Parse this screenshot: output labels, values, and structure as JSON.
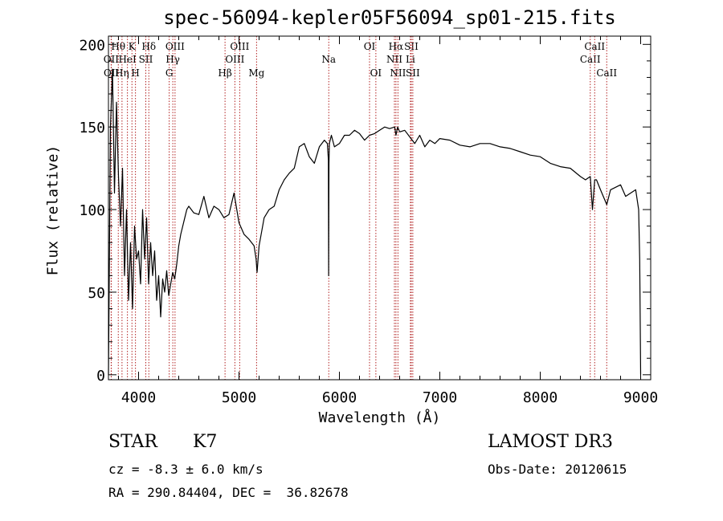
{
  "chart_data": {
    "type": "line",
    "title": "spec-56094-kepler05F56094_sp01-215.fits",
    "xlabel": "Wavelength (Å)",
    "ylabel": "Flux (relative)",
    "xlim": [
      3700,
      9100
    ],
    "ylim": [
      -3,
      205
    ],
    "xticks": [
      4000,
      5000,
      6000,
      7000,
      8000,
      9000
    ],
    "yticks": [
      0,
      50,
      100,
      150,
      200
    ],
    "series": [
      {
        "name": "flux",
        "x": [
          3700,
          3720,
          3740,
          3760,
          3780,
          3800,
          3820,
          3840,
          3860,
          3880,
          3900,
          3920,
          3940,
          3960,
          3980,
          4000,
          4020,
          4040,
          4060,
          4080,
          4100,
          4120,
          4140,
          4160,
          4180,
          4200,
          4220,
          4240,
          4260,
          4280,
          4300,
          4320,
          4340,
          4360,
          4380,
          4400,
          4420,
          4440,
          4460,
          4480,
          4500,
          4550,
          4600,
          4650,
          4700,
          4750,
          4800,
          4850,
          4900,
          4950,
          5000,
          5050,
          5100,
          5150,
          5170,
          5180,
          5200,
          5250,
          5300,
          5350,
          5400,
          5450,
          5500,
          5550,
          5600,
          5650,
          5700,
          5750,
          5800,
          5850,
          5880,
          5890,
          5893,
          5896,
          5900,
          5920,
          5950,
          6000,
          6050,
          6100,
          6150,
          6200,
          6250,
          6300,
          6350,
          6400,
          6450,
          6500,
          6550,
          6563,
          6580,
          6600,
          6650,
          6700,
          6750,
          6800,
          6850,
          6900,
          6950,
          7000,
          7100,
          7200,
          7300,
          7400,
          7500,
          7600,
          7700,
          7800,
          7900,
          8000,
          8100,
          8200,
          8300,
          8400,
          8450,
          8498,
          8520,
          8542,
          8560,
          8600,
          8662,
          8700,
          8800,
          8850,
          8900,
          8950,
          8980,
          8990,
          9000
        ],
        "values": [
          0,
          150,
          185,
          110,
          165,
          120,
          90,
          125,
          60,
          100,
          45,
          80,
          40,
          90,
          70,
          75,
          55,
          100,
          70,
          95,
          55,
          80,
          60,
          75,
          45,
          60,
          35,
          58,
          50,
          63,
          48,
          55,
          62,
          58,
          67,
          78,
          85,
          90,
          95,
          100,
          102,
          98,
          97,
          108,
          95,
          102,
          100,
          95,
          97,
          110,
          92,
          85,
          82,
          78,
          70,
          62,
          78,
          95,
          100,
          102,
          112,
          118,
          122,
          125,
          138,
          140,
          132,
          128,
          138,
          142,
          140,
          130,
          60,
          128,
          140,
          145,
          138,
          140,
          145,
          145,
          148,
          146,
          142,
          145,
          146,
          148,
          150,
          149,
          150,
          145,
          150,
          147,
          148,
          144,
          140,
          145,
          138,
          142,
          140,
          143,
          142,
          139,
          138,
          140,
          140,
          138,
          137,
          135,
          133,
          132,
          128,
          126,
          125,
          120,
          118,
          120,
          100,
          118,
          118,
          112,
          103,
          112,
          115,
          108,
          110,
          112,
          100,
          70,
          0
        ]
      }
    ],
    "lines": [
      {
        "label": "OII",
        "wave": 3727,
        "row": 2
      },
      {
        "label": "OII",
        "wave": 3729,
        "row": 3
      },
      {
        "label": "Hθ",
        "wave": 3798,
        "row": 1
      },
      {
        "label": "Hη",
        "wave": 3835,
        "row": 3
      },
      {
        "label": "HeI",
        "wave": 3889,
        "row": 2
      },
      {
        "label": "K",
        "wave": 3934,
        "row": 1
      },
      {
        "label": "H",
        "wave": 3969,
        "row": 3
      },
      {
        "label": "SII",
        "wave": 4072,
        "row": 2
      },
      {
        "label": "Hδ",
        "wave": 4102,
        "row": 1
      },
      {
        "label": "G",
        "wave": 4305,
        "row": 3
      },
      {
        "label": "Hγ",
        "wave": 4341,
        "row": 2
      },
      {
        "label": "OIII",
        "wave": 4363,
        "row": 1
      },
      {
        "label": "Hβ",
        "wave": 4861,
        "row": 3
      },
      {
        "label": "OIII",
        "wave": 4959,
        "row": 2
      },
      {
        "label": "OIII",
        "wave": 5007,
        "row": 1
      },
      {
        "label": "Mg",
        "wave": 5175,
        "row": 3
      },
      {
        "label": "Na",
        "wave": 5894,
        "row": 2
      },
      {
        "label": "OI",
        "wave": 6300,
        "row": 1
      },
      {
        "label": "OI",
        "wave": 6363,
        "row": 3
      },
      {
        "label": "NII",
        "wave": 6548,
        "row": 2
      },
      {
        "label": "Hα",
        "wave": 6563,
        "row": 1
      },
      {
        "label": "NII",
        "wave": 6583,
        "row": 3
      },
      {
        "label": "Li",
        "wave": 6707,
        "row": 2
      },
      {
        "label": "SII",
        "wave": 6716,
        "row": 1
      },
      {
        "label": "SII",
        "wave": 6731,
        "row": 3
      },
      {
        "label": "CaII",
        "wave": 8498,
        "row": 2
      },
      {
        "label": "CaII",
        "wave": 8542,
        "row": 1
      },
      {
        "label": "CaII",
        "wave": 8662,
        "row": 3
      }
    ]
  },
  "info": {
    "object_type": "STAR",
    "subclass": "K7",
    "survey": "LAMOST DR3",
    "cz": "cz = -8.3 ± 6.0 km/s",
    "obs_date": "Obs-Date: 20120615",
    "coords": "RA = 290.84404, DEC =  36.82678"
  },
  "colors": {
    "line_marker": "#b22222",
    "spectrum": "#000000"
  }
}
